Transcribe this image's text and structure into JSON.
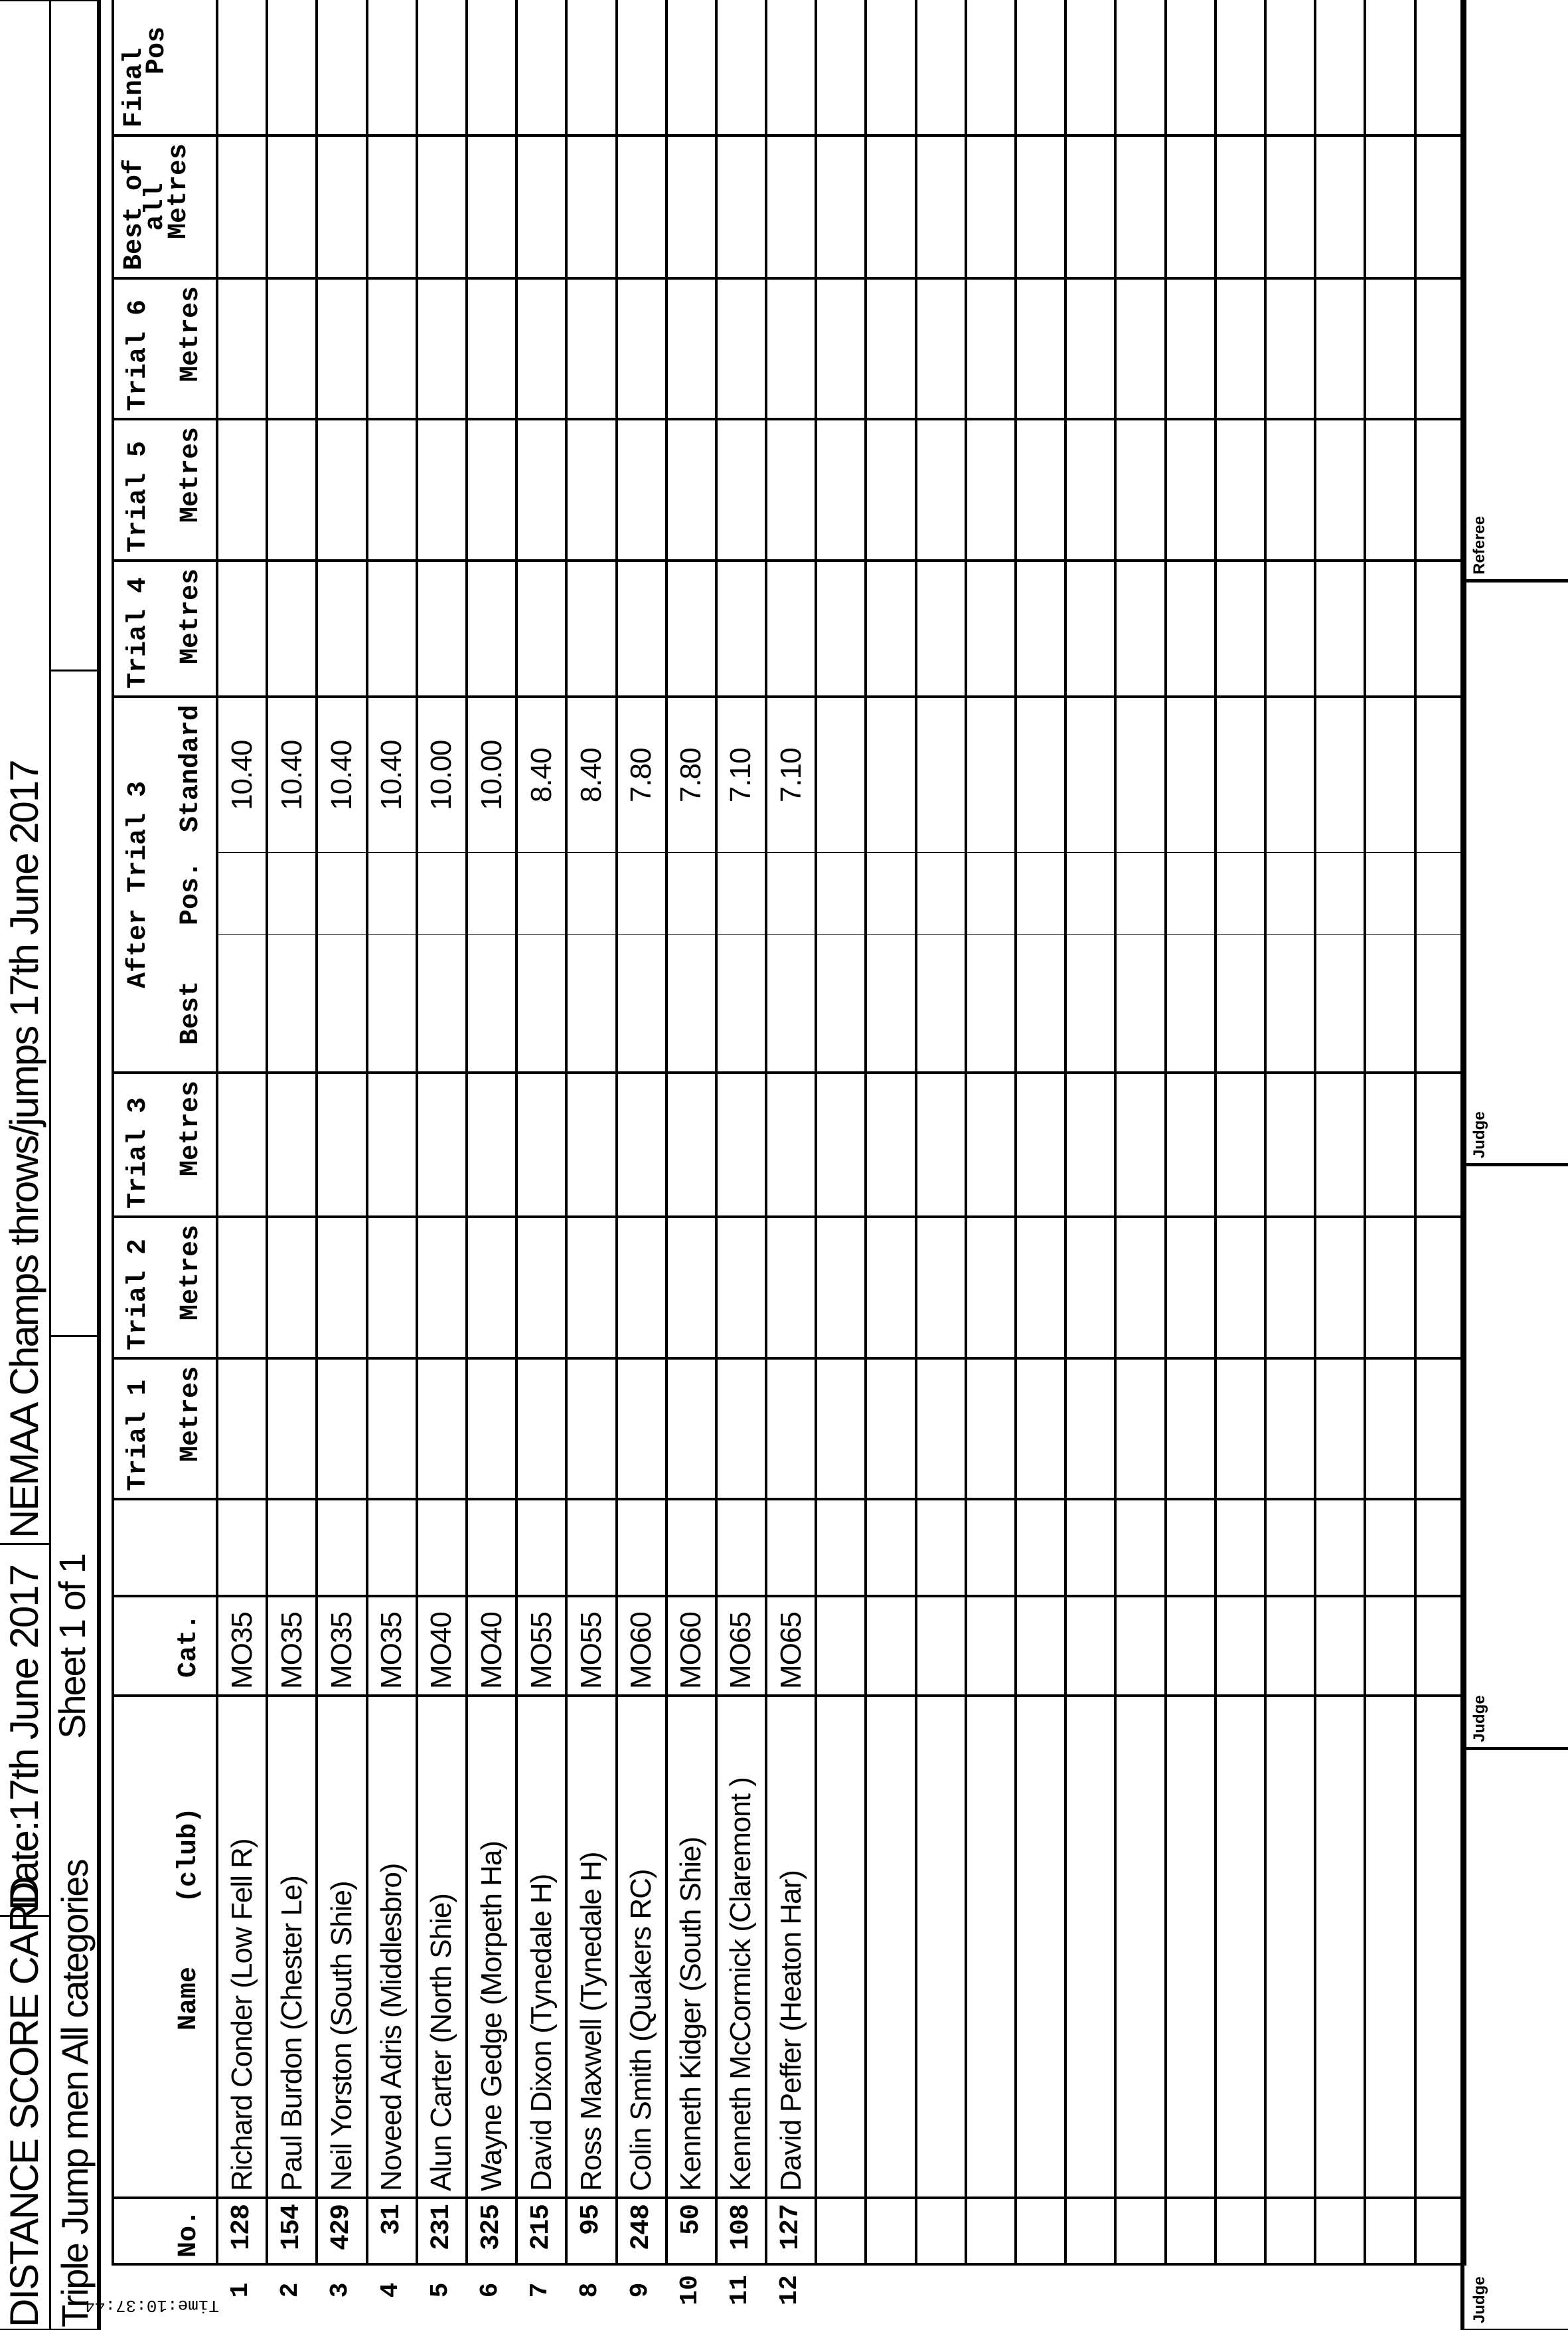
{
  "header": {
    "title": "DISTANCE SCORE CARD",
    "date": "Date:17th June 2017",
    "meeting": "NEMAA Champs throws/jumps 17th June 2017",
    "event": "Triple Jump men All categories",
    "sheet": "Sheet 1 of 1",
    "time": "Time:10:37:44"
  },
  "columns": {
    "no": "No.",
    "name": "Name",
    "club": "(club)",
    "cat": "Cat.",
    "trial1": "Trial 1",
    "trial2": "Trial 2",
    "trial3": "Trial 3",
    "trial4": "Trial 4",
    "trial5": "Trial 5",
    "trial6": "Trial 6",
    "metres": "Metres",
    "after_trial3": "After Trial 3",
    "best": "Best",
    "pos": "Pos.",
    "standard": "Standard",
    "best_of_all_1": "Best of",
    "best_of_all_2": "all",
    "final": "Final",
    "final_pos": "Pos"
  },
  "athletes": [
    {
      "row": "1",
      "no": "128",
      "name": "Richard Conder (Low Fell R)",
      "cat": "MO35",
      "standard": "10.40"
    },
    {
      "row": "2",
      "no": "154",
      "name": "Paul Burdon (Chester Le)",
      "cat": "MO35",
      "standard": "10.40"
    },
    {
      "row": "3",
      "no": "429",
      "name": "Neil Yorston (South Shie)",
      "cat": "MO35",
      "standard": "10.40"
    },
    {
      "row": "4",
      "no": "31",
      "name": "Noveed Adris (Middlesbro)",
      "cat": "MO35",
      "standard": "10.40"
    },
    {
      "row": "5",
      "no": "231",
      "name": "Alun Carter (North Shie)",
      "cat": "MO40",
      "standard": "10.00"
    },
    {
      "row": "6",
      "no": "325",
      "name": "Wayne Gedge (Morpeth Ha)",
      "cat": "MO40",
      "standard": "10.00"
    },
    {
      "row": "7",
      "no": "215",
      "name": "David Dixon (Tynedale H)",
      "cat": "MO55",
      "standard": "8.40"
    },
    {
      "row": "8",
      "no": "95",
      "name": "Ross Maxwell (Tynedale H)",
      "cat": "MO55",
      "standard": "8.40"
    },
    {
      "row": "9",
      "no": "248",
      "name": "Colin Smith (Quakers RC)",
      "cat": "MO60",
      "standard": "7.80"
    },
    {
      "row": "10",
      "no": "50",
      "name": "Kenneth Kidger (South Shie)",
      "cat": "MO60",
      "standard": "7.80"
    },
    {
      "row": "11",
      "no": "108",
      "name": "Kenneth McCormick (Claremont )",
      "cat": "MO65",
      "standard": "7.10"
    },
    {
      "row": "12",
      "no": "127",
      "name": "David Peffer (Heaton Har)",
      "cat": "MO65",
      "standard": "7.10"
    }
  ],
  "signatures": [
    "Judge",
    "Judge",
    "Judge",
    "Referee"
  ]
}
